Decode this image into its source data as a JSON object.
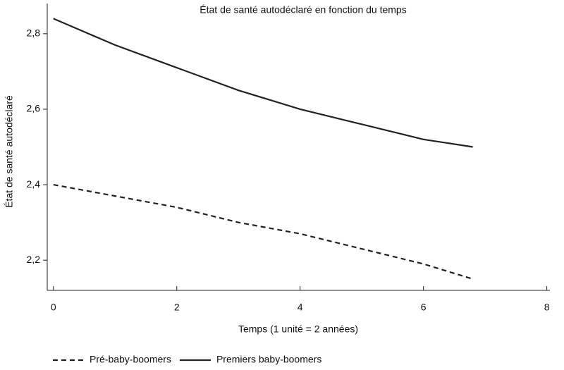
{
  "chart_data": {
    "type": "line",
    "title": "État de santé autodéclaré en fonction du temps",
    "x_label": "Temps (1 unité = 2 années)",
    "y_label": "État de santé autodéclaré",
    "x": [
      0,
      1,
      2,
      3,
      4,
      5,
      6,
      6.8
    ],
    "series": [
      {
        "name": "Pré-baby-boomers",
        "color": "#222222",
        "style": "dashed",
        "values": [
          2.4,
          2.37,
          2.34,
          2.3,
          2.27,
          2.23,
          2.19,
          2.15
        ]
      },
      {
        "name": "Premiers baby-boomers",
        "color": "#222222",
        "style": "solid",
        "values": [
          2.84,
          2.77,
          2.71,
          2.65,
          2.6,
          2.56,
          2.52,
          2.5
        ]
      }
    ],
    "xlim": [
      -0.1,
      8.05
    ],
    "xticks": [
      0,
      2,
      4,
      6,
      8
    ],
    "ylim": [
      2.12,
      2.88
    ],
    "yticks": [
      {
        "value": 2.2,
        "label": "2,2"
      },
      {
        "value": 2.4,
        "label": "2,4"
      },
      {
        "value": 2.6,
        "label": "2,6"
      },
      {
        "value": 2.8,
        "label": "2,8"
      }
    ],
    "grid": false,
    "legend": "bottom"
  }
}
